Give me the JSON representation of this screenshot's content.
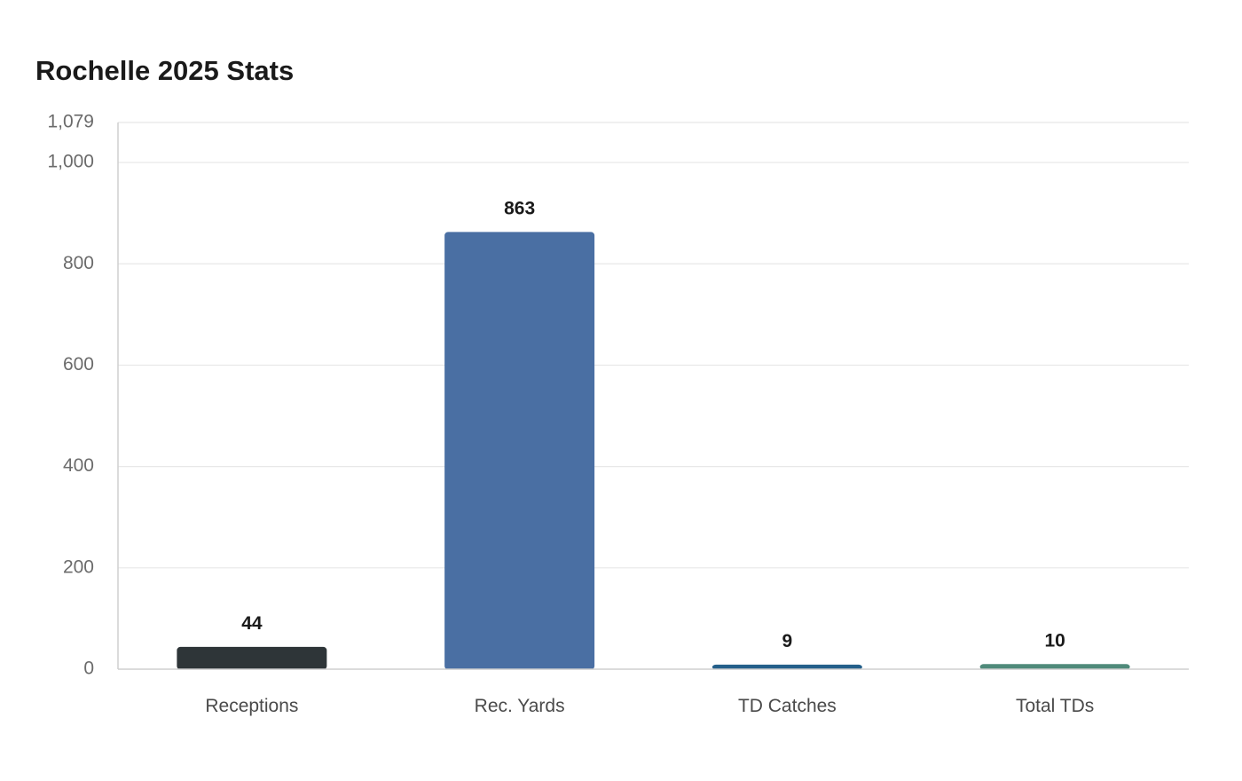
{
  "chart_data": {
    "type": "bar",
    "title": "Rochelle 2025 Stats",
    "xlabel": "",
    "ylabel": "",
    "categories": [
      "Receptions",
      "Rec. Yards",
      "TD Catches",
      "Total TDs"
    ],
    "values": [
      44,
      863,
      9,
      10
    ],
    "data_labels": [
      "44",
      "863",
      "9",
      "10"
    ],
    "colors": [
      "#2e3538",
      "#4a6fa3",
      "#245f8a",
      "#4f8a7a"
    ],
    "ylim": [
      0,
      1079
    ],
    "yticks": [
      0,
      200,
      400,
      600,
      800,
      1000,
      1079
    ],
    "ytick_labels": [
      "0",
      "200",
      "400",
      "600",
      "800",
      "1,000",
      "1,079"
    ],
    "grid": true,
    "legend": "none"
  }
}
